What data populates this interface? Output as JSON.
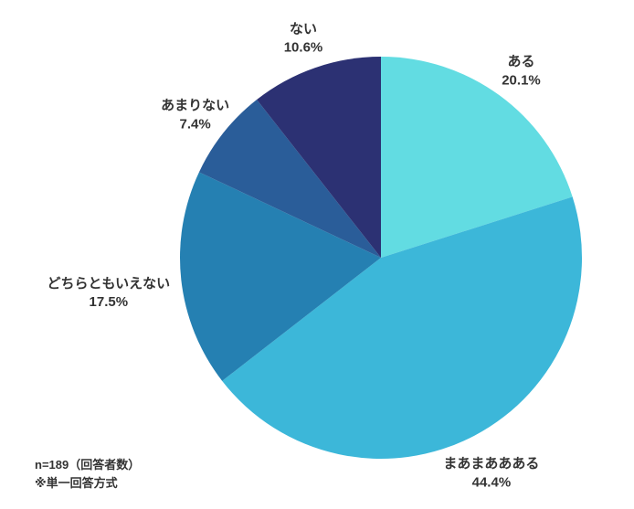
{
  "chart_data": {
    "type": "pie",
    "labels": [
      "ある",
      "まあまああある",
      "どちらともいえない",
      "あまりない",
      "ない"
    ],
    "values": [
      20.1,
      44.4,
      17.5,
      7.4,
      10.6
    ],
    "colors": [
      "#62dce2",
      "#3cb7d9",
      "#2580b2",
      "#2a5d99",
      "#2c3173"
    ],
    "start_angle": 0,
    "direction": "clockwise",
    "value_suffix": "%",
    "legend_position": "none",
    "title": ""
  },
  "notes": {
    "sample_size": "n=189（回答者数）",
    "method": "※単一回答方式"
  }
}
